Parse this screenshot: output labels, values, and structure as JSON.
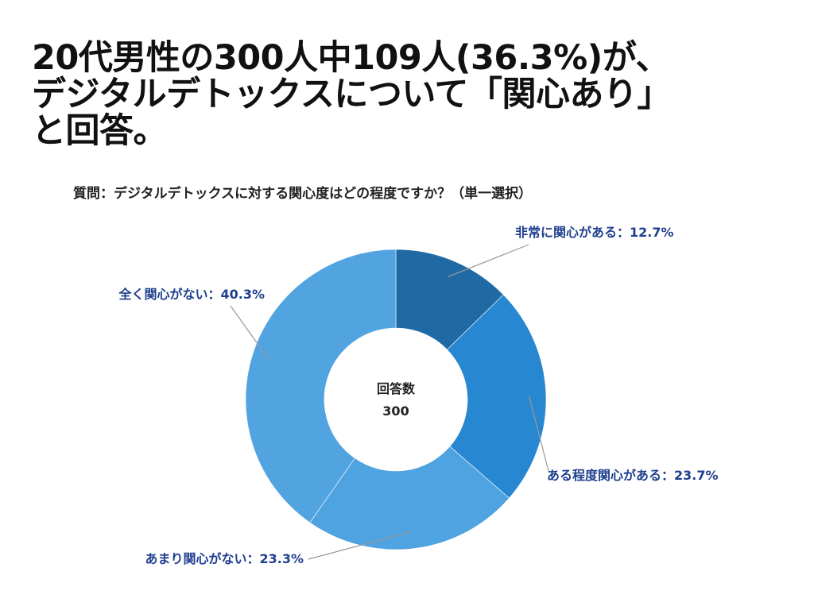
{
  "title": {
    "line1": "20代男性の300人中109人(36.3%)が、",
    "line2": "デジタルデトックスについて「関心あり」",
    "line3": "と回答。"
  },
  "question": "質問：デジタルデトックスに対する関心度はどの程度ですか？（単一選択）",
  "center": {
    "label": "回答数",
    "value": "300"
  },
  "colors": {
    "label_text": "#1f3f8f",
    "leader_line": "#999999"
  },
  "chart_data": {
    "type": "pie",
    "donut": true,
    "total": 300,
    "slices": [
      {
        "label": "非常に関心がある：12.7%",
        "value": 12.7,
        "color": "#1f6aa5"
      },
      {
        "label": "ある程度関心がある：23.7%",
        "value": 23.7,
        "color": "#2787d0"
      },
      {
        "label": "あまり関心がない：23.3%",
        "value": 23.3,
        "color": "#4fa3e0"
      },
      {
        "label": "全く関心がない：40.3%",
        "value": 40.3,
        "color": "#52a4e1"
      }
    ]
  }
}
